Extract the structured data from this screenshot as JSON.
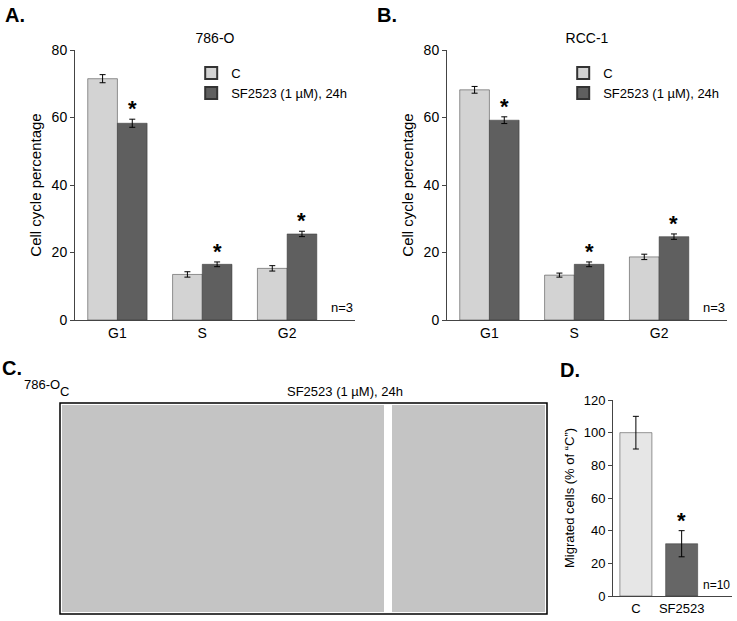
{
  "chart_data": [
    {
      "type": "bar",
      "panel": "A.",
      "title": "786-O",
      "y_label": "Cell cycle percentage",
      "note": "n=3",
      "categories": [
        "G1",
        "S",
        "G2"
      ],
      "series": [
        {
          "name": "C",
          "color": "#d3d3d3",
          "values": [
            71.5,
            13.5,
            15.3
          ],
          "error": [
            1.2,
            0.8,
            0.8
          ]
        },
        {
          "name": "SF2523 (1 µM), 24h",
          "color": "#5f5f5f",
          "values": [
            58.3,
            16.5,
            25.5
          ],
          "error": [
            1.2,
            0.7,
            0.8
          ]
        }
      ],
      "ylim": [
        0,
        80
      ],
      "yticks": [
        0,
        20,
        40,
        60,
        80
      ],
      "grid": false,
      "legend": "upper right",
      "annotations": [
        {
          "text": "*",
          "category": "G1",
          "series": "SF2523 (1 µM), 24h"
        },
        {
          "text": "*",
          "category": "S",
          "series": "SF2523 (1 µM), 24h"
        },
        {
          "text": "*",
          "category": "G2",
          "series": "SF2523 (1 µM), 24h"
        }
      ]
    },
    {
      "type": "bar",
      "panel": "B.",
      "title": "RCC-1",
      "y_label": "Cell cycle percentage",
      "note": "n=3",
      "categories": [
        "G1",
        "S",
        "G2"
      ],
      "series": [
        {
          "name": "C",
          "color": "#d3d3d3",
          "values": [
            68.2,
            13.3,
            18.7
          ],
          "error": [
            1.0,
            0.6,
            0.8
          ]
        },
        {
          "name": "SF2523 (1 µM), 24h",
          "color": "#5f5f5f",
          "values": [
            59.2,
            16.5,
            24.7
          ],
          "error": [
            1.0,
            0.7,
            0.8
          ]
        }
      ],
      "ylim": [
        0,
        80
      ],
      "yticks": [
        0,
        20,
        40,
        60,
        80
      ],
      "grid": false,
      "legend": "upper right",
      "annotations": [
        {
          "text": "*",
          "category": "G1",
          "series": "SF2523 (1 µM), 24h"
        },
        {
          "text": "*",
          "category": "S",
          "series": "SF2523 (1 µM), 24h"
        },
        {
          "text": "*",
          "category": "G2",
          "series": "SF2523 (1 µM), 24h"
        }
      ]
    },
    {
      "type": "image",
      "panel": "C.",
      "title": "786-O",
      "categories": [
        "C",
        "SF2523 (1 µM), 24h"
      ]
    },
    {
      "type": "bar",
      "panel": "D.",
      "y_label": "Migrated cells (% of “C”)",
      "note": "n=10",
      "categories": [
        "C",
        "SF2523"
      ],
      "series": [
        {
          "colors": [
            "#e6e6e6",
            "#666666"
          ],
          "values": [
            100,
            32
          ],
          "error": [
            10,
            8
          ]
        }
      ],
      "ylim": [
        0,
        120
      ],
      "yticks": [
        0,
        20,
        40,
        60,
        80,
        100,
        120
      ],
      "grid": false,
      "annotations": [
        {
          "text": "*",
          "category": "SF2523",
          "series": 0
        }
      ]
    }
  ]
}
